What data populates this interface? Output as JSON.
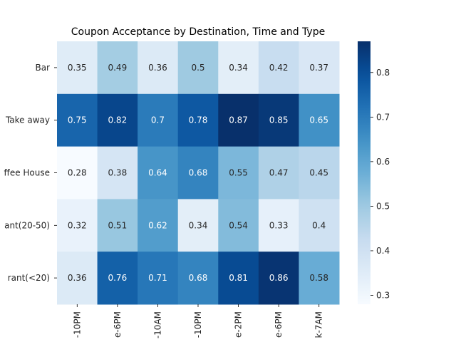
{
  "chart_data": {
    "type": "heatmap",
    "title": "Coupon Acceptance by Destination, Time and Type",
    "xlabel": "",
    "ylabel": "",
    "rows": [
      "Bar",
      "Take away",
      "ffee House",
      "ant(20-50)",
      "rant(<20)"
    ],
    "columns": [
      "-10PM",
      "e-6PM",
      "-10AM",
      "-10PM",
      "e-2PM",
      "e-6PM",
      "k-7AM"
    ],
    "values": [
      [
        0.35,
        0.49,
        0.36,
        0.5,
        0.34,
        0.42,
        0.37
      ],
      [
        0.75,
        0.82,
        0.7,
        0.78,
        0.87,
        0.85,
        0.65
      ],
      [
        0.28,
        0.38,
        0.64,
        0.68,
        0.55,
        0.47,
        0.45
      ],
      [
        0.32,
        0.51,
        0.62,
        0.34,
        0.54,
        0.33,
        0.4
      ],
      [
        0.36,
        0.76,
        0.71,
        0.68,
        0.81,
        0.86,
        0.58
      ]
    ],
    "colorbar": {
      "ticks": [
        "0.3",
        "0.4",
        "0.5",
        "0.6",
        "0.7",
        "0.8"
      ],
      "vmin": 0.28,
      "vmax": 0.87
    },
    "colormap": "Blues",
    "grid": false
  }
}
